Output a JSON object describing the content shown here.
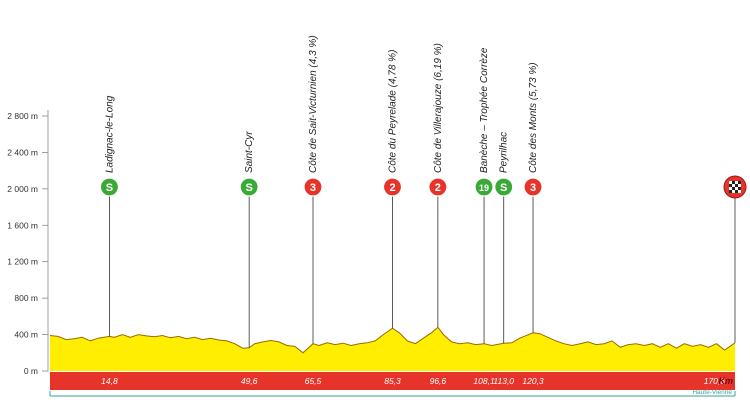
{
  "chart_data": {
    "type": "area",
    "title": "",
    "xlabel": "",
    "ylabel": "",
    "x_unit": "Km",
    "xlim": [
      0,
      170.6
    ],
    "ylim": [
      0,
      2800
    ],
    "y_ticks": [
      0,
      400,
      800,
      1200,
      1600,
      2000,
      2400,
      2800
    ],
    "y_tick_labels": [
      "0 m",
      "400 m",
      "800 m",
      "1 200 m",
      "1 600 m",
      "2 000 m",
      "2 400 m",
      "2 800 m"
    ],
    "x_markers": [
      {
        "km": 14.8,
        "label": "14,8"
      },
      {
        "km": 49.6,
        "label": "49,6"
      },
      {
        "km": 65.5,
        "label": "65,5"
      },
      {
        "km": 85.3,
        "label": "85,3"
      },
      {
        "km": 96.6,
        "label": "96,6"
      },
      {
        "km": 108.1,
        "label": "108,1"
      },
      {
        "km": 113.0,
        "label": "113,0"
      },
      {
        "km": 120.3,
        "label": "120,3"
      },
      {
        "km": 170.6,
        "label": "170,6"
      }
    ],
    "points_of_interest": [
      {
        "km": 14.8,
        "name": "Ladignac-le-Long",
        "badge": "S",
        "color": "#3aa935"
      },
      {
        "km": 49.6,
        "name": "Saint-Cyr",
        "badge": "S",
        "color": "#3aa935"
      },
      {
        "km": 65.5,
        "name": "Côte de Sait-Victurnien (4,3 %)",
        "badge": "3",
        "color": "#e6342a"
      },
      {
        "km": 85.3,
        "name": "Côte du Peyrelade (4,78 %)",
        "badge": "2",
        "color": "#e6342a"
      },
      {
        "km": 96.6,
        "name": "Côte de Villerajouze (6,19 %)",
        "badge": "2",
        "color": "#e6342a"
      },
      {
        "km": 108.1,
        "name": "Banèche – Trophée Corrèze",
        "badge": "19",
        "color": "#3aa935"
      },
      {
        "km": 113.0,
        "name": "Peyrilhac",
        "badge": "S",
        "color": "#3aa935"
      },
      {
        "km": 120.3,
        "name": "Côte des Monts (5,73 %)",
        "badge": "3",
        "color": "#e6342a"
      },
      {
        "km": 170.6,
        "name": "",
        "badge": "finish",
        "color": "#e6342a"
      }
    ],
    "profile": {
      "x": [
        0,
        2,
        4,
        6,
        8,
        10,
        12,
        14.8,
        16,
        18,
        20,
        22,
        24,
        26,
        28,
        30,
        32,
        34,
        36,
        38,
        40,
        42,
        44,
        46,
        48,
        49.6,
        51,
        53,
        55,
        57,
        59,
        61,
        63,
        65.5,
        67,
        69,
        71,
        73,
        75,
        77,
        79,
        81,
        83,
        85.3,
        87,
        89,
        91,
        93,
        95,
        96.6,
        98,
        100,
        102,
        104,
        106,
        108.1,
        110,
        113,
        115,
        117,
        120.3,
        122,
        124,
        126,
        128,
        130,
        132,
        134,
        136,
        138,
        140,
        142,
        144,
        146,
        148,
        150,
        152,
        154,
        156,
        158,
        160,
        162,
        164,
        166,
        168,
        170.6
      ],
      "y": [
        390,
        380,
        345,
        355,
        370,
        330,
        360,
        380,
        370,
        400,
        370,
        400,
        385,
        375,
        390,
        365,
        380,
        355,
        370,
        345,
        360,
        340,
        330,
        300,
        250,
        255,
        300,
        320,
        335,
        320,
        280,
        270,
        200,
        300,
        280,
        310,
        290,
        305,
        280,
        300,
        310,
        330,
        400,
        470,
        420,
        330,
        300,
        360,
        420,
        480,
        400,
        320,
        300,
        310,
        290,
        300,
        280,
        305,
        310,
        360,
        420,
        410,
        370,
        330,
        300,
        280,
        300,
        320,
        290,
        300,
        330,
        260,
        290,
        300,
        280,
        300,
        260,
        300,
        250,
        300,
        270,
        290,
        260,
        300,
        230,
        310
      ],
      "fill": "#ffee00",
      "stroke": "#9a6a00"
    },
    "region_label": "Haute-Vienne",
    "colors": {
      "baseline_bar": "#e6342a",
      "region_line": "#3aa2a0",
      "axis": "#888888"
    }
  }
}
